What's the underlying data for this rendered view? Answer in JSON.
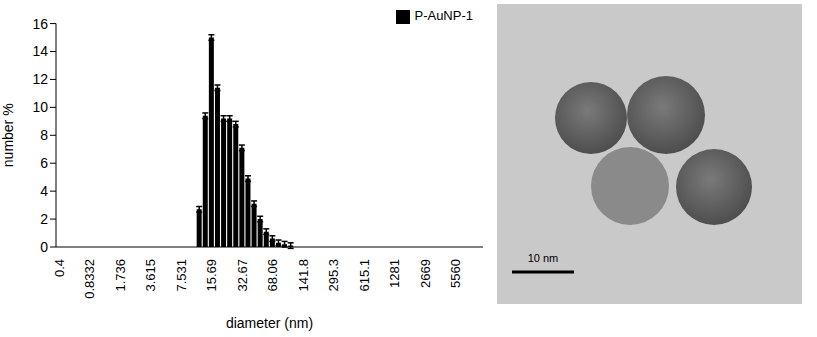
{
  "chart_data": {
    "type": "bar",
    "x_label": "diameter (nm)",
    "y_label": "number %",
    "categories": [
      "0.4",
      null,
      null,
      null,
      null,
      "0.8332",
      null,
      null,
      null,
      null,
      "1.736",
      null,
      null,
      null,
      null,
      "3.615",
      null,
      null,
      null,
      null,
      "7.531",
      null,
      null,
      null,
      null,
      "15.69",
      null,
      null,
      null,
      null,
      "32.67",
      null,
      null,
      null,
      null,
      "68.06",
      null,
      null,
      null,
      null,
      "141.8",
      null,
      null,
      null,
      null,
      "295.3",
      null,
      null,
      null,
      null,
      "615.1",
      null,
      null,
      null,
      null,
      "1281",
      null,
      null,
      null,
      null,
      "2669",
      null,
      null,
      null,
      null,
      "5560",
      null,
      null,
      null,
      null
    ],
    "series": [
      {
        "name": "P-AuNP-1",
        "color": "#000000",
        "values": [
          0,
          0,
          0,
          0,
          0,
          0,
          0,
          0,
          0,
          0,
          0,
          0,
          0,
          0,
          0,
          0,
          0,
          0,
          0,
          0,
          0,
          0,
          0,
          2.7,
          9.4,
          15.0,
          11.4,
          9.2,
          9.2,
          8.8,
          7.1,
          4.9,
          3.1,
          2.0,
          1.1,
          0.6,
          0.3,
          0.2,
          0.1,
          0,
          0,
          0,
          0,
          0,
          0,
          0,
          0,
          0,
          0,
          0,
          0,
          0,
          0,
          0,
          0,
          0,
          0,
          0,
          0,
          0,
          0,
          0,
          0,
          0,
          0,
          0,
          0,
          0,
          0,
          0
        ],
        "errors": [
          0.2,
          0.2,
          0.2,
          0.2,
          0.2,
          0.2,
          0.2,
          0.2,
          0.2,
          0.2,
          0.2,
          0.2,
          0.2,
          0.2,
          0.2,
          0.2,
          0.2,
          0.2,
          0.2,
          0.2,
          0.2,
          0.2,
          0.2,
          0.2,
          0.2,
          0.2,
          0.2,
          0.2,
          0.2,
          0.2,
          0.2,
          0.2,
          0.2,
          0.2,
          0.2,
          0.2,
          0.2,
          0.2,
          0.2,
          0.2,
          0.2,
          0.2,
          0.2,
          0.2,
          0.2,
          0.2,
          0.2,
          0.2,
          0.2,
          0.2,
          0.2,
          0.2,
          0.2,
          0.2,
          0.2,
          0.2,
          0.2,
          0.2,
          0.2,
          0.2,
          0.2,
          0.2,
          0.2,
          0.2,
          0.2,
          0.2,
          0.2,
          0.2,
          0.2,
          0.2
        ]
      }
    ],
    "ylim": [
      0,
      16
    ],
    "yticks": [
      0,
      2,
      4,
      6,
      8,
      10,
      12,
      14,
      16
    ],
    "grid": false,
    "legend": "upper right"
  },
  "image": {
    "scale_bar": "10 nm"
  }
}
